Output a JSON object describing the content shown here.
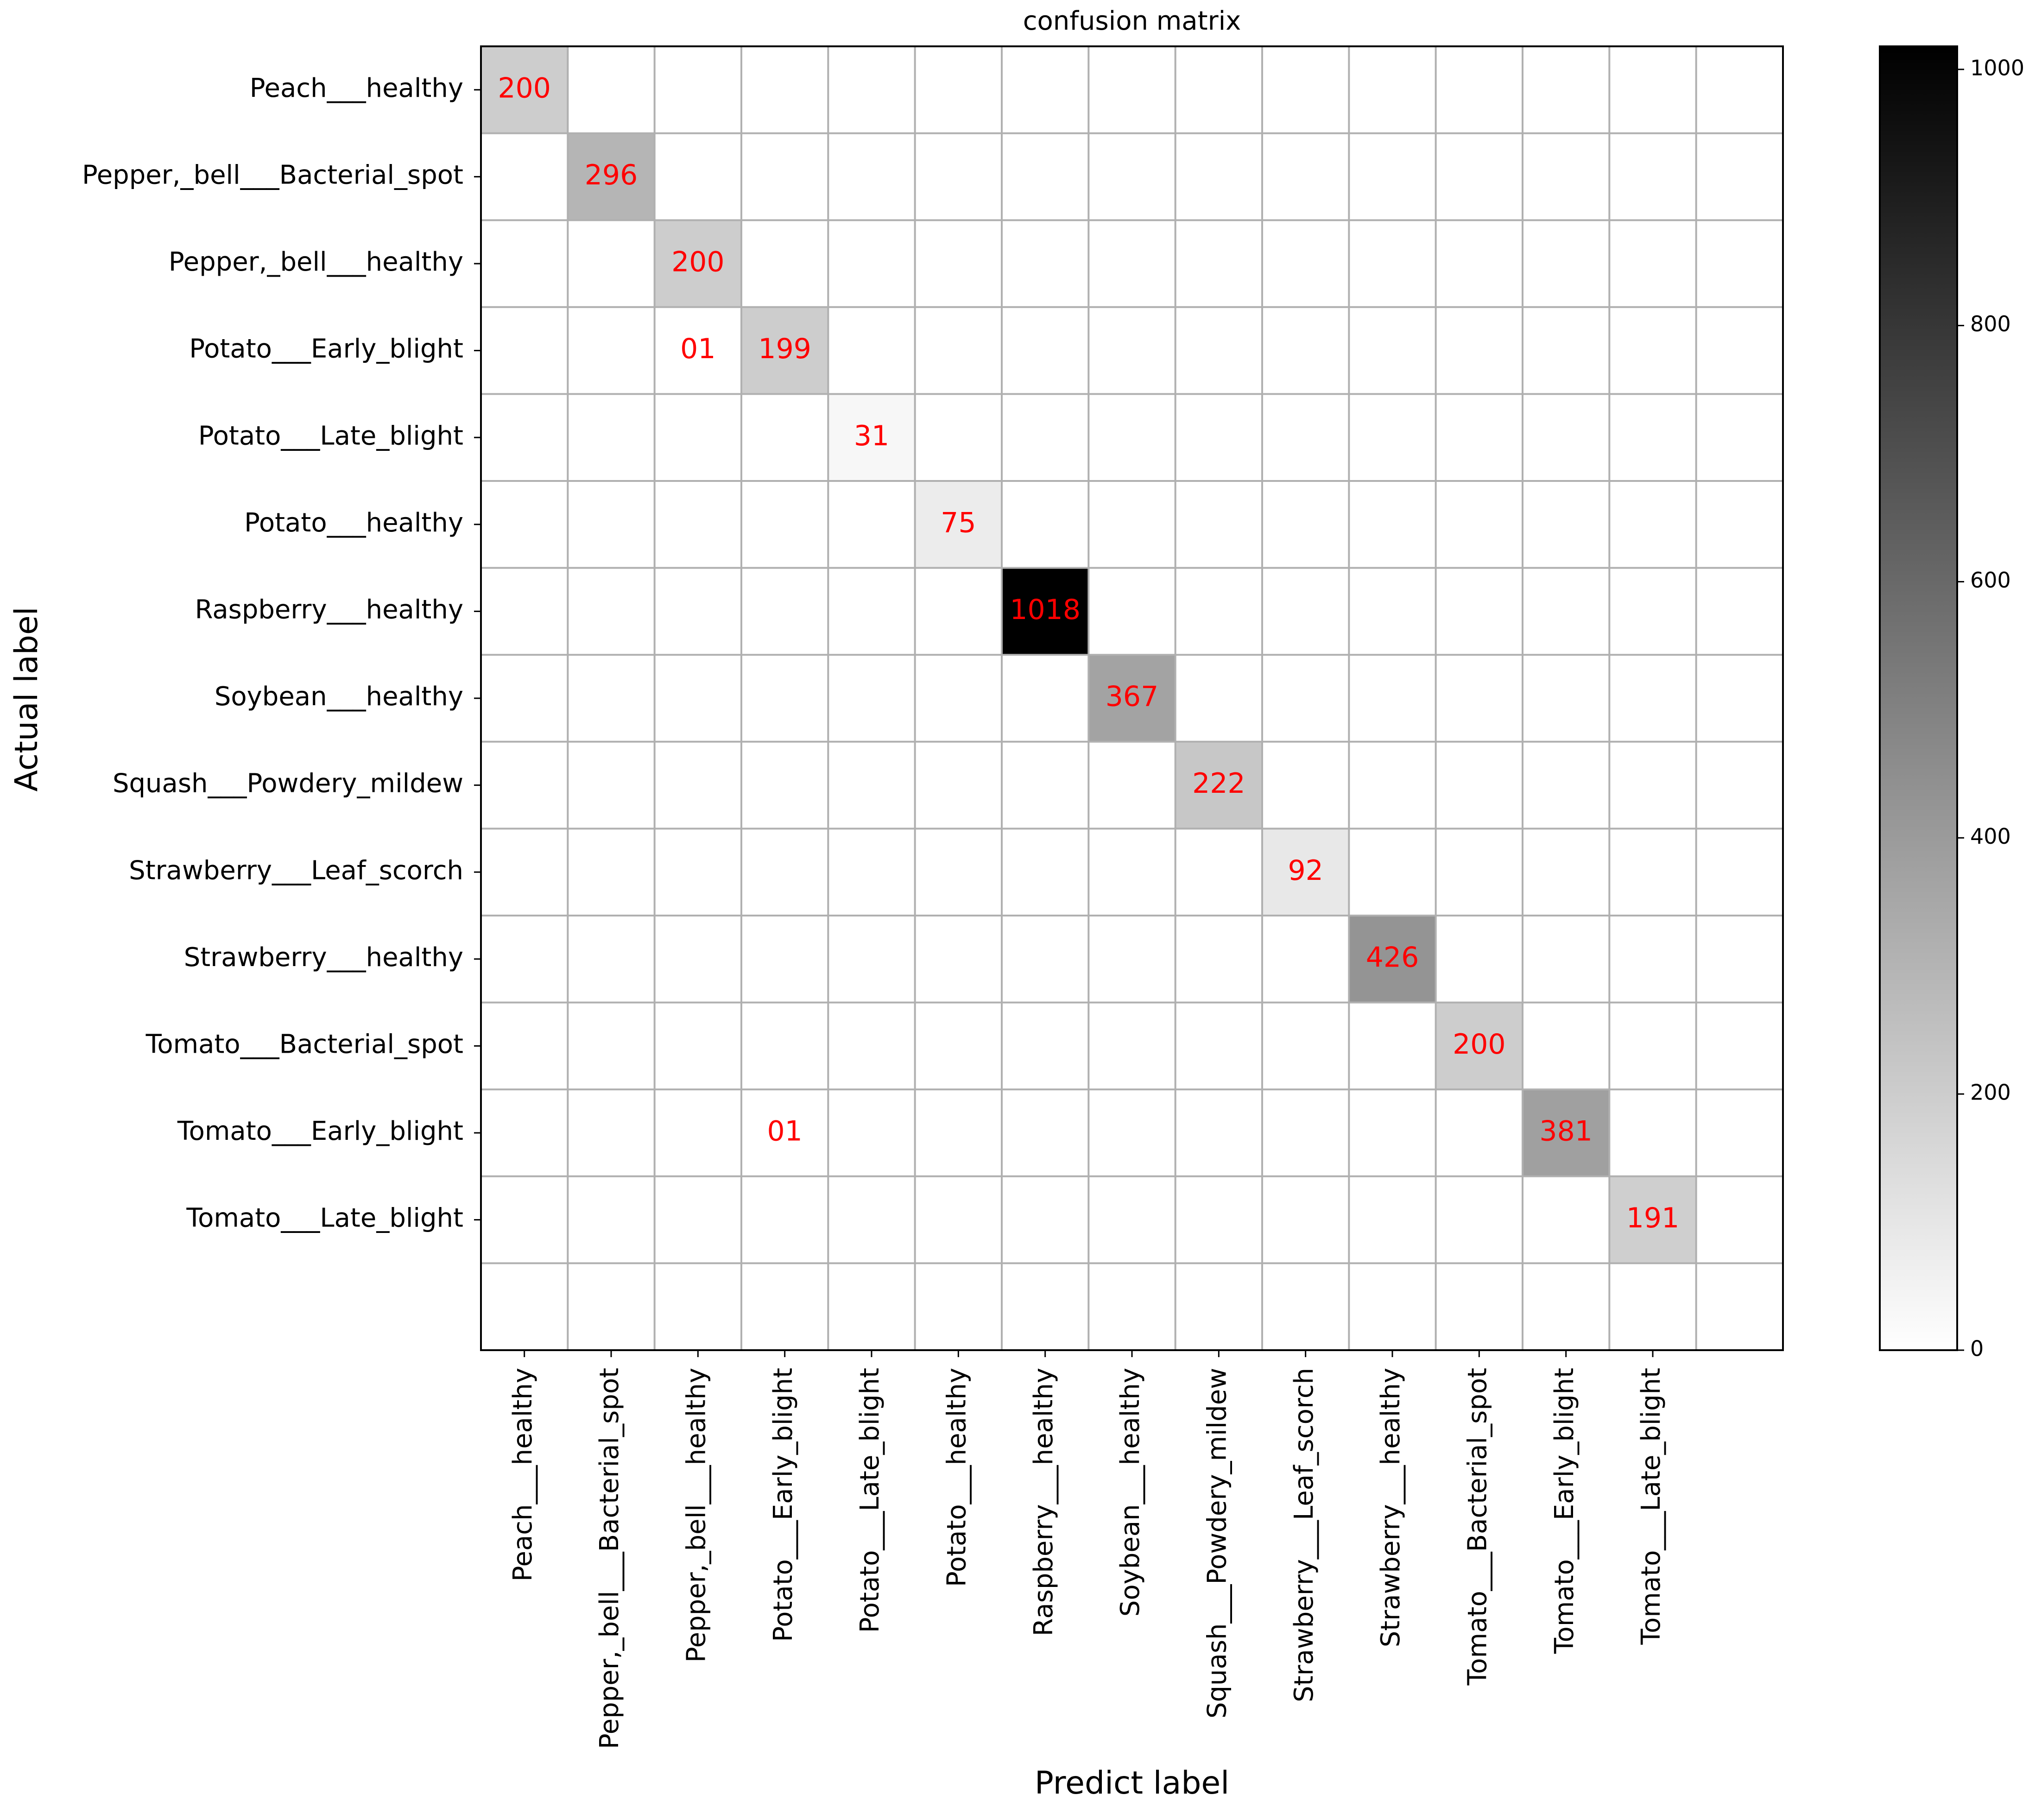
{
  "chart_data": {
    "type": "heatmap",
    "title": "confusion matrix",
    "xlabel": "Predict label",
    "ylabel": "Actual label",
    "row_labels": [
      "Peach___healthy",
      "Pepper,_bell___Bacterial_spot",
      "Pepper,_bell___healthy",
      "Potato___Early_blight",
      "Potato___Late_blight",
      "Potato___healthy",
      "Raspberry___healthy",
      "Soybean___healthy",
      "Squash___Powdery_mildew",
      "Strawberry___Leaf_scorch",
      "Strawberry___healthy",
      "Tomato___Bacterial_spot",
      "Tomato___Early_blight",
      "Tomato___Late_blight"
    ],
    "col_labels": [
      "Peach___healthy",
      "Pepper,_bell___Bacterial_spot",
      "Pepper,_bell___healthy",
      "Potato___Early_blight",
      "Potato___Late_blight",
      "Potato___healthy",
      "Raspberry___healthy",
      "Soybean___healthy",
      "Squash___Powdery_mildew",
      "Strawberry___Leaf_scorch",
      "Strawberry___healthy",
      "Tomato___Bacterial_spot",
      "Tomato___Early_blight",
      "Tomato___Late_blight"
    ],
    "grid_rows": 15,
    "grid_cols": 15,
    "cells": [
      {
        "row": 0,
        "col": 0,
        "value": 200,
        "label": "200"
      },
      {
        "row": 1,
        "col": 1,
        "value": 296,
        "label": "296"
      },
      {
        "row": 2,
        "col": 2,
        "value": 200,
        "label": "200"
      },
      {
        "row": 3,
        "col": 2,
        "value": 1,
        "label": "01"
      },
      {
        "row": 3,
        "col": 3,
        "value": 199,
        "label": "199"
      },
      {
        "row": 4,
        "col": 4,
        "value": 31,
        "label": "31"
      },
      {
        "row": 5,
        "col": 5,
        "value": 75,
        "label": "75"
      },
      {
        "row": 6,
        "col": 6,
        "value": 1018,
        "label": "1018"
      },
      {
        "row": 7,
        "col": 7,
        "value": 367,
        "label": "367"
      },
      {
        "row": 8,
        "col": 8,
        "value": 222,
        "label": "222"
      },
      {
        "row": 9,
        "col": 9,
        "value": 92,
        "label": "92"
      },
      {
        "row": 10,
        "col": 10,
        "value": 426,
        "label": "426"
      },
      {
        "row": 11,
        "col": 11,
        "value": 200,
        "label": "200"
      },
      {
        "row": 12,
        "col": 3,
        "value": 1,
        "label": "01"
      },
      {
        "row": 12,
        "col": 12,
        "value": 381,
        "label": "381"
      },
      {
        "row": 13,
        "col": 13,
        "value": 191,
        "label": "191"
      }
    ],
    "colorbar": {
      "min": 0,
      "max": 1018,
      "ticks": [
        0,
        200,
        400,
        600,
        800,
        1000
      ],
      "colormap": "greys"
    },
    "grid": true
  },
  "colors": {
    "annotation": "#ff0000",
    "grid_line": "#b0b0b0",
    "axis": "#000000"
  }
}
